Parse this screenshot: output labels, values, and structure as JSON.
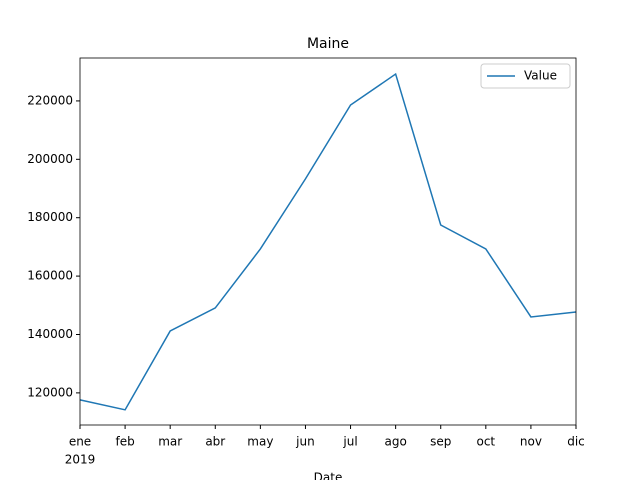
{
  "chart_data": {
    "type": "line",
    "title": "Maine",
    "x_label": "Date",
    "categories": [
      "ene",
      "feb",
      "mar",
      "abr",
      "may",
      "jun",
      "jul",
      "ago",
      "sep",
      "oct",
      "nov",
      "dic"
    ],
    "year": "2019",
    "series": [
      {
        "name": "Value",
        "color": "#1f77b4",
        "values": [
          117600,
          114200,
          141200,
          149100,
          169300,
          193300,
          218600,
          229200,
          177500,
          169300,
          146000,
          147700
        ]
      }
    ],
    "ylim": [
      109000,
      234700
    ],
    "yticks": [
      120000,
      140000,
      160000,
      180000,
      200000,
      220000
    ],
    "legend": "upper right",
    "grid": false
  }
}
